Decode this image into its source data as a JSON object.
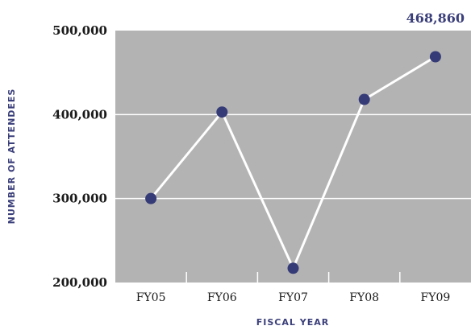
{
  "chart_data": {
    "type": "line",
    "categories": [
      "FY05",
      "FY06",
      "FY07",
      "FY08",
      "FY09"
    ],
    "series": [
      {
        "values": [
          300000,
          403000,
          217000,
          418000,
          468860
        ]
      }
    ],
    "xlabel": "FISCAL YEAR",
    "ylabel": "NUMBER OF ATTENDEES",
    "ylim": [
      200000,
      500000
    ],
    "yticks": [
      "200,000",
      "300,000",
      "400,000",
      "500,000"
    ],
    "ytick_values": [
      200000,
      300000,
      400000,
      500000
    ],
    "annotation": "468,860",
    "grid": true,
    "plot_background": "#b3b3b3",
    "line_color": "#ffffff",
    "marker_color": "#353b77"
  }
}
